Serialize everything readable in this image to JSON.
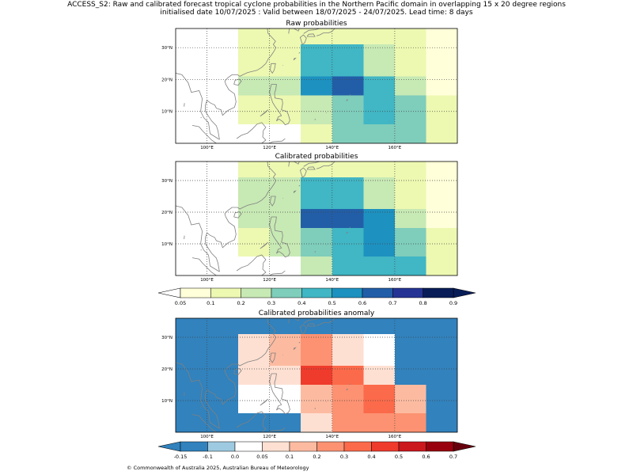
{
  "figure": {
    "title_line1": "ACCESS_S2: Raw and calibrated forecast tropical cyclone probabilities in the Northern Pacific domain in overlapping 15 x 20 degree regions",
    "title_line2": "initialised date 10/07/2025 :  Valid between 18/07/2025 - 24/07/2025. Lead time: 8 days",
    "footer": "© Commonwealth of Australia 2025, Australian Bureau of Meteorology"
  },
  "map": {
    "lon_range": [
      90,
      180
    ],
    "lat_range": [
      0,
      36
    ],
    "lon_ticks": [
      100,
      120,
      140,
      160
    ],
    "lon_tick_labels": [
      "100°E",
      "120°E",
      "140°E",
      "160°E"
    ],
    "lat_ticks": [
      10,
      20,
      30
    ],
    "lat_tick_labels": [
      "10°N",
      "20°N",
      "30°N"
    ],
    "gridlines": true,
    "land_outline_color": "#808080"
  },
  "colorbars": {
    "probability": {
      "tick_labels": [
        "0.05",
        "0.1",
        "0.2",
        "0.3",
        "0.4",
        "0.5",
        "0.6",
        "0.7",
        "0.8",
        "0.9"
      ],
      "under_color": "#ffffff",
      "colors": [
        "#ffffd9",
        "#edf8b1",
        "#c7e9b4",
        "#7fcdbb",
        "#41b6c4",
        "#1d91c0",
        "#225ea8",
        "#253494",
        "#081d58"
      ],
      "over_color": "#081d58"
    },
    "anomaly": {
      "tick_labels": [
        "-0.15",
        "-0.1",
        "0.0",
        "0.05",
        "0.1",
        "0.2",
        "0.3",
        "0.4",
        "0.5",
        "0.6",
        "0.7"
      ],
      "under_color": "#3182bd",
      "colors": [
        "#3182bd",
        "#9ecae1",
        "#ffffff",
        "#fee0d2",
        "#fcbba1",
        "#fc9272",
        "#fb6a4a",
        "#ef3b2c",
        "#cb181d",
        "#99000d"
      ],
      "over_color": "#67000d"
    }
  },
  "chart_data": [
    {
      "type": "heatmap",
      "title": "Raw probabilities",
      "cells": [
        {
          "lon": [
            110,
            130
          ],
          "lat": [
            31,
            36
          ],
          "value": 0.15
        },
        {
          "lon": [
            130,
            150
          ],
          "lat": [
            31,
            36
          ],
          "value": 0.15
        },
        {
          "lon": [
            150,
            170
          ],
          "lat": [
            31,
            36
          ],
          "value": 0.15
        },
        {
          "lon": [
            170,
            180
          ],
          "lat": [
            31,
            36
          ],
          "value": 0.07
        },
        {
          "lon": [
            110,
            120
          ],
          "lat": [
            21,
            31
          ],
          "value": 0.15
        },
        {
          "lon": [
            120,
            130
          ],
          "lat": [
            21,
            31
          ],
          "value": 0.15
        },
        {
          "lon": [
            130,
            140
          ],
          "lat": [
            21,
            31
          ],
          "value": 0.45
        },
        {
          "lon": [
            140,
            150
          ],
          "lat": [
            21,
            31
          ],
          "value": 0.45
        },
        {
          "lon": [
            150,
            160
          ],
          "lat": [
            21,
            31
          ],
          "value": 0.25
        },
        {
          "lon": [
            160,
            170
          ],
          "lat": [
            21,
            31
          ],
          "value": 0.15
        },
        {
          "lon": [
            170,
            180
          ],
          "lat": [
            21,
            31
          ],
          "value": 0.07
        },
        {
          "lon": [
            110,
            120
          ],
          "lat": [
            15,
            21
          ],
          "value": 0.25
        },
        {
          "lon": [
            120,
            130
          ],
          "lat": [
            15,
            21
          ],
          "value": 0.25
        },
        {
          "lon": [
            130,
            140
          ],
          "lat": [
            15,
            21
          ],
          "value": 0.55
        },
        {
          "lon": [
            140,
            150
          ],
          "lat": [
            15,
            21
          ],
          "value": 0.65
        },
        {
          "lon": [
            150,
            160
          ],
          "lat": [
            15,
            21
          ],
          "value": 0.45
        },
        {
          "lon": [
            160,
            170
          ],
          "lat": [
            15,
            21
          ],
          "value": 0.25
        },
        {
          "lon": [
            170,
            180
          ],
          "lat": [
            15,
            21
          ],
          "value": 0.07
        },
        {
          "lon": [
            110,
            120
          ],
          "lat": [
            6,
            15
          ],
          "value": 0.15
        },
        {
          "lon": [
            120,
            130
          ],
          "lat": [
            6,
            15
          ],
          "value": 0.15
        },
        {
          "lon": [
            130,
            140
          ],
          "lat": [
            6,
            15
          ],
          "value": 0.25
        },
        {
          "lon": [
            140,
            150
          ],
          "lat": [
            6,
            15
          ],
          "value": 0.35
        },
        {
          "lon": [
            150,
            160
          ],
          "lat": [
            6,
            15
          ],
          "value": 0.45
        },
        {
          "lon": [
            160,
            170
          ],
          "lat": [
            6,
            15
          ],
          "value": 0.35
        },
        {
          "lon": [
            170,
            180
          ],
          "lat": [
            6,
            15
          ],
          "value": 0.15
        },
        {
          "lon": [
            130,
            140
          ],
          "lat": [
            0,
            6
          ],
          "value": 0.15
        },
        {
          "lon": [
            140,
            150
          ],
          "lat": [
            0,
            6
          ],
          "value": 0.35
        },
        {
          "lon": [
            150,
            170
          ],
          "lat": [
            0,
            6
          ],
          "value": 0.35
        },
        {
          "lon": [
            170,
            180
          ],
          "lat": [
            0,
            6
          ],
          "value": 0.15
        }
      ]
    },
    {
      "type": "heatmap",
      "title": "Calibrated probabilities",
      "cells": [
        {
          "lon": [
            110,
            130
          ],
          "lat": [
            31,
            36
          ],
          "value": 0.15
        },
        {
          "lon": [
            130,
            150
          ],
          "lat": [
            31,
            36
          ],
          "value": 0.15
        },
        {
          "lon": [
            150,
            170
          ],
          "lat": [
            31,
            36
          ],
          "value": 0.15
        },
        {
          "lon": [
            170,
            180
          ],
          "lat": [
            31,
            36
          ],
          "value": 0.07
        },
        {
          "lon": [
            110,
            120
          ],
          "lat": [
            21,
            31
          ],
          "value": 0.25
        },
        {
          "lon": [
            120,
            130
          ],
          "lat": [
            21,
            31
          ],
          "value": 0.25
        },
        {
          "lon": [
            130,
            140
          ],
          "lat": [
            21,
            31
          ],
          "value": 0.45
        },
        {
          "lon": [
            140,
            150
          ],
          "lat": [
            21,
            31
          ],
          "value": 0.45
        },
        {
          "lon": [
            150,
            160
          ],
          "lat": [
            21,
            31
          ],
          "value": 0.25
        },
        {
          "lon": [
            160,
            170
          ],
          "lat": [
            21,
            31
          ],
          "value": 0.15
        },
        {
          "lon": [
            170,
            180
          ],
          "lat": [
            21,
            31
          ],
          "value": 0.07
        },
        {
          "lon": [
            110,
            120
          ],
          "lat": [
            15,
            21
          ],
          "value": 0.25
        },
        {
          "lon": [
            120,
            130
          ],
          "lat": [
            15,
            21
          ],
          "value": 0.25
        },
        {
          "lon": [
            130,
            140
          ],
          "lat": [
            15,
            21
          ],
          "value": 0.65
        },
        {
          "lon": [
            140,
            150
          ],
          "lat": [
            15,
            21
          ],
          "value": 0.65
        },
        {
          "lon": [
            150,
            160
          ],
          "lat": [
            15,
            21
          ],
          "value": 0.55
        },
        {
          "lon": [
            160,
            170
          ],
          "lat": [
            15,
            21
          ],
          "value": 0.25
        },
        {
          "lon": [
            170,
            180
          ],
          "lat": [
            15,
            21
          ],
          "value": 0.07
        },
        {
          "lon": [
            110,
            120
          ],
          "lat": [
            6,
            15
          ],
          "value": 0.15
        },
        {
          "lon": [
            120,
            130
          ],
          "lat": [
            6,
            15
          ],
          "value": 0.25
        },
        {
          "lon": [
            130,
            140
          ],
          "lat": [
            6,
            15
          ],
          "value": 0.35
        },
        {
          "lon": [
            140,
            150
          ],
          "lat": [
            6,
            15
          ],
          "value": 0.45
        },
        {
          "lon": [
            150,
            160
          ],
          "lat": [
            6,
            15
          ],
          "value": 0.55
        },
        {
          "lon": [
            160,
            170
          ],
          "lat": [
            6,
            15
          ],
          "value": 0.35
        },
        {
          "lon": [
            170,
            180
          ],
          "lat": [
            6,
            15
          ],
          "value": 0.15
        },
        {
          "lon": [
            130,
            140
          ],
          "lat": [
            0,
            6
          ],
          "value": 0.25
        },
        {
          "lon": [
            140,
            150
          ],
          "lat": [
            0,
            6
          ],
          "value": 0.45
        },
        {
          "lon": [
            150,
            170
          ],
          "lat": [
            0,
            6
          ],
          "value": 0.45
        },
        {
          "lon": [
            170,
            180
          ],
          "lat": [
            0,
            6
          ],
          "value": 0.15
        }
      ]
    },
    {
      "type": "heatmap",
      "title": "Calibrated probabilities anomaly",
      "cells": [
        {
          "lon": [
            90,
            110
          ],
          "lat": [
            0,
            36
          ],
          "value": -0.15
        },
        {
          "lon": [
            110,
            130
          ],
          "lat": [
            31,
            36
          ],
          "value": -0.15
        },
        {
          "lon": [
            130,
            150
          ],
          "lat": [
            31,
            36
          ],
          "value": -0.15
        },
        {
          "lon": [
            150,
            170
          ],
          "lat": [
            31,
            36
          ],
          "value": -0.12
        },
        {
          "lon": [
            170,
            180
          ],
          "lat": [
            31,
            36
          ],
          "value": -0.12
        },
        {
          "lon": [
            110,
            120
          ],
          "lat": [
            21,
            31
          ],
          "value": 0.07
        },
        {
          "lon": [
            120,
            130
          ],
          "lat": [
            21,
            31
          ],
          "value": 0.15
        },
        {
          "lon": [
            130,
            140
          ],
          "lat": [
            21,
            31
          ],
          "value": 0.25
        },
        {
          "lon": [
            140,
            150
          ],
          "lat": [
            21,
            31
          ],
          "value": 0.07
        },
        {
          "lon": [
            150,
            160
          ],
          "lat": [
            21,
            31
          ],
          "value": 0.0
        },
        {
          "lon": [
            160,
            170
          ],
          "lat": [
            21,
            31
          ],
          "value": -0.12
        },
        {
          "lon": [
            170,
            180
          ],
          "lat": [
            21,
            31
          ],
          "value": -0.15
        },
        {
          "lon": [
            110,
            120
          ],
          "lat": [
            15,
            21
          ],
          "value": 0.07
        },
        {
          "lon": [
            120,
            130
          ],
          "lat": [
            15,
            21
          ],
          "value": 0.07
        },
        {
          "lon": [
            130,
            140
          ],
          "lat": [
            15,
            21
          ],
          "value": 0.45
        },
        {
          "lon": [
            140,
            150
          ],
          "lat": [
            15,
            21
          ],
          "value": 0.35
        },
        {
          "lon": [
            150,
            160
          ],
          "lat": [
            15,
            21
          ],
          "value": 0.07
        },
        {
          "lon": [
            160,
            170
          ],
          "lat": [
            15,
            21
          ],
          "value": -0.12
        },
        {
          "lon": [
            170,
            180
          ],
          "lat": [
            15,
            21
          ],
          "value": -0.15
        },
        {
          "lon": [
            110,
            120
          ],
          "lat": [
            6,
            15
          ],
          "value": 0.0
        },
        {
          "lon": [
            120,
            130
          ],
          "lat": [
            6,
            15
          ],
          "value": 0.0
        },
        {
          "lon": [
            130,
            140
          ],
          "lat": [
            6,
            15
          ],
          "value": 0.15
        },
        {
          "lon": [
            140,
            150
          ],
          "lat": [
            6,
            15
          ],
          "value": 0.25
        },
        {
          "lon": [
            150,
            160
          ],
          "lat": [
            6,
            15
          ],
          "value": 0.35
        },
        {
          "lon": [
            160,
            170
          ],
          "lat": [
            6,
            15
          ],
          "value": 0.15
        },
        {
          "lon": [
            170,
            180
          ],
          "lat": [
            6,
            15
          ],
          "value": -0.15
        },
        {
          "lon": [
            110,
            130
          ],
          "lat": [
            0,
            6
          ],
          "value": -0.15
        },
        {
          "lon": [
            130,
            140
          ],
          "lat": [
            0,
            6
          ],
          "value": 0.07
        },
        {
          "lon": [
            140,
            150
          ],
          "lat": [
            0,
            6
          ],
          "value": 0.25
        },
        {
          "lon": [
            150,
            170
          ],
          "lat": [
            0,
            6
          ],
          "value": 0.25
        },
        {
          "lon": [
            170,
            180
          ],
          "lat": [
            0,
            6
          ],
          "value": -0.15
        }
      ]
    }
  ]
}
